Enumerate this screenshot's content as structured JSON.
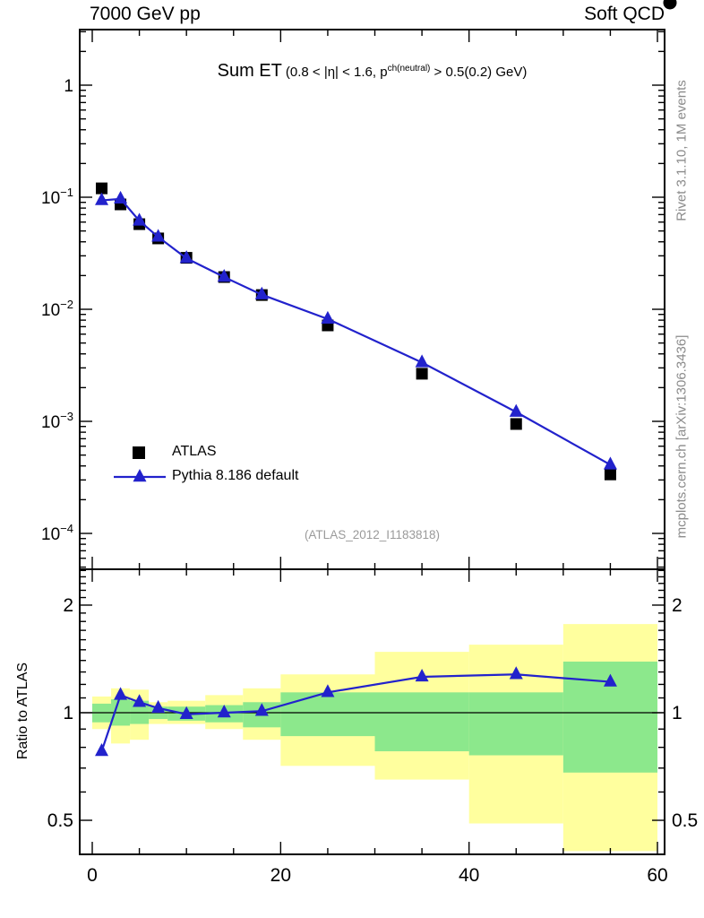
{
  "header": {
    "left": "7000 GeV pp",
    "right": "Soft QCD"
  },
  "title": {
    "main": "Sum ET",
    "pre": "(0.8 < |η| < 1.6, p",
    "sup": "ch(neutral)",
    "post": " > 0.5(0.2) GeV)"
  },
  "legend": [
    {
      "label": "ATLAS",
      "marker": "square",
      "color": "#000000"
    },
    {
      "label": "Pythia 8.186 default",
      "marker": "triangle-line",
      "color": "#2222cc"
    }
  ],
  "watermarks": {
    "analysis": "(ATLAS_2012_I1183818)",
    "rivet": "Rivet 3.1.10,  1M events",
    "mcplots": "mcplots.cern.ch [arXiv:1306.3436]"
  },
  "ratio_ylabel": "Ratio to ATLAS",
  "colors": {
    "mc_blue": "#2222cc",
    "data_black": "#000000",
    "band_yellow": "#ffff9e",
    "band_green": "#8ce88c",
    "frame": "#000000"
  },
  "chart_data": {
    "type": "line",
    "title": "Sum ET (0.8 < |eta| < 1.6, p^ch(neutral) > 0.5(0.2) GeV)",
    "xlabel": "",
    "ylabel": "",
    "xlim": [
      0,
      60
    ],
    "ylim_main": [
      5e-05,
      3
    ],
    "ylim_ratio": [
      0.4,
      2.5
    ],
    "x": [
      1,
      3,
      5,
      7,
      10,
      14,
      18,
      25,
      35,
      45,
      55
    ],
    "bin_edges": [
      0,
      2,
      4,
      6,
      8,
      12,
      16,
      20,
      30,
      40,
      50,
      60
    ],
    "series": [
      {
        "name": "ATLAS",
        "marker": "square",
        "color": "#000000",
        "values": [
          0.12,
          0.0863,
          0.0575,
          0.0429,
          0.0288,
          0.0194,
          0.0134,
          0.00718,
          0.00266,
          0.000947,
          0.000336
        ]
      },
      {
        "name": "Pythia 8.186 default",
        "marker": "triangle",
        "color": "#2222cc",
        "line": true,
        "values": [
          0.0936,
          0.0967,
          0.0615,
          0.0442,
          0.0285,
          0.0194,
          0.0135,
          0.00819,
          0.00335,
          0.00121,
          0.00041
        ]
      }
    ],
    "ratio": {
      "values": [
        0.78,
        1.12,
        1.07,
        1.03,
        0.99,
        1.0,
        1.01,
        1.14,
        1.26,
        1.28,
        1.22
      ],
      "bands": [
        {
          "x0": 0,
          "x1": 2,
          "ylo": 0.9,
          "yhi": 1.11,
          "glo": 0.94,
          "ghi": 1.06
        },
        {
          "x0": 2,
          "x1": 4,
          "ylo": 0.82,
          "yhi": 1.17,
          "glo": 0.92,
          "ghi": 1.09
        },
        {
          "x0": 4,
          "x1": 6,
          "ylo": 0.84,
          "yhi": 1.16,
          "glo": 0.93,
          "ghi": 1.08
        },
        {
          "x0": 6,
          "x1": 8,
          "ylo": 0.93,
          "yhi": 1.07,
          "glo": 0.96,
          "ghi": 1.04
        },
        {
          "x0": 8,
          "x1": 12,
          "ylo": 0.93,
          "yhi": 1.08,
          "glo": 0.95,
          "ghi": 1.04
        },
        {
          "x0": 12,
          "x1": 16,
          "ylo": 0.9,
          "yhi": 1.12,
          "glo": 0.94,
          "ghi": 1.05
        },
        {
          "x0": 16,
          "x1": 20,
          "ylo": 0.84,
          "yhi": 1.17,
          "glo": 0.91,
          "ghi": 1.07
        },
        {
          "x0": 20,
          "x1": 30,
          "ylo": 0.71,
          "yhi": 1.28,
          "glo": 0.86,
          "ghi": 1.14
        },
        {
          "x0": 30,
          "x1": 40,
          "ylo": 0.65,
          "yhi": 1.48,
          "glo": 0.78,
          "ghi": 1.14
        },
        {
          "x0": 40,
          "x1": 50,
          "ylo": 0.49,
          "yhi": 1.55,
          "glo": 0.76,
          "ghi": 1.14
        },
        {
          "x0": 50,
          "x1": 60,
          "ylo": 0.41,
          "yhi": 1.77,
          "glo": 0.68,
          "ghi": 1.39
        }
      ]
    },
    "axes": {
      "x_majors": [
        0,
        20,
        40,
        60
      ],
      "x_labels": [
        "0",
        "20",
        "40",
        "60"
      ],
      "x_minor_step": 5,
      "y_main_decades": [
        0,
        -1,
        -2,
        -3,
        -4
      ],
      "y_ratio_majors": [
        0.5,
        1,
        2
      ],
      "y_ratio_labels": [
        "0.5",
        "1",
        "2"
      ],
      "grid": false,
      "legend_position": "left-middle"
    }
  }
}
